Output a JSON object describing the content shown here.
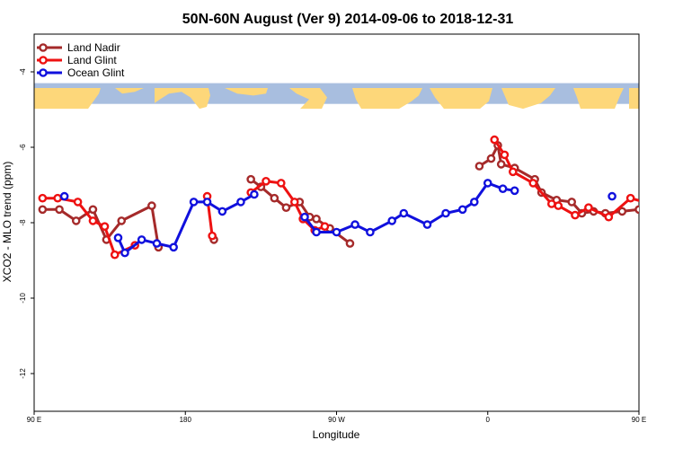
{
  "chart_data": {
    "type": "line",
    "title": "50N-60N August (Ver 9)   2014-09-06 to 2018-12-31",
    "xlabel": "Longitude",
    "ylabel": "XCO2 - MLO trend (ppm)",
    "xlim": [
      90,
      450
    ],
    "ylim": [
      -13,
      -3
    ],
    "x_ticks": [
      {
        "value": 90,
        "label": "90 E"
      },
      {
        "value": 180,
        "label": "180"
      },
      {
        "value": 270,
        "label": "90 W"
      },
      {
        "value": 360,
        "label": "0"
      },
      {
        "value": 450,
        "label": "90 E"
      },
      {
        "value": 540,
        "label": "180"
      }
    ],
    "y_ticks": [
      {
        "value": -4,
        "label": "-4"
      },
      {
        "value": -6,
        "label": "-6"
      },
      {
        "value": -8,
        "label": "-8"
      },
      {
        "value": -10,
        "label": "-10"
      },
      {
        "value": -12,
        "label": "-12"
      }
    ],
    "legend_position": "top-left",
    "map_band": {
      "y_top": -4.3,
      "y_bottom": -4.85,
      "ocean_color": "#a8bedf",
      "land_color": "#fdd77a"
    },
    "series": [
      {
        "name": "Land Nadir",
        "color": "#a52a2a",
        "segments": [
          [
            [
              95,
              -7.65
            ],
            [
              105,
              -7.65
            ],
            [
              115,
              -7.95
            ],
            [
              125,
              -7.65
            ],
            [
              133,
              -8.45
            ],
            [
              142,
              -7.95
            ],
            [
              160,
              -7.55
            ],
            [
              164,
              -8.65
            ]
          ],
          [
            [
              197,
              -8.45
            ]
          ],
          [
            [
              219,
              -6.85
            ],
            [
              225,
              -7.05
            ],
            [
              233,
              -7.35
            ],
            [
              240,
              -7.6
            ],
            [
              248,
              -7.45
            ],
            [
              254,
              -7.85
            ],
            [
              258,
              -7.9
            ],
            [
              266,
              -8.15
            ],
            [
              278,
              -8.55
            ]
          ],
          [
            [
              355,
              -6.5
            ],
            [
              362,
              -6.3
            ],
            [
              366,
              -5.95
            ],
            [
              368,
              -6.45
            ],
            [
              376,
              -6.55
            ],
            [
              388,
              -6.85
            ],
            [
              392,
              -7.2
            ],
            [
              401,
              -7.4
            ],
            [
              410,
              -7.45
            ],
            [
              416,
              -7.75
            ],
            [
              423,
              -7.7
            ],
            [
              430,
              -7.75
            ],
            [
              440,
              -7.7
            ],
            [
              450,
              -7.65
            ],
            [
              460,
              -7.95
            ],
            [
              465,
              -7.65
            ],
            [
              467,
              -8.45
            ],
            [
              472,
              -7.95
            ],
            [
              490,
              -7.55
            ],
            [
              494,
              -8.65
            ]
          ]
        ]
      },
      {
        "name": "Land Glint",
        "color": "#ee1111",
        "segments": [
          [
            [
              95,
              -7.35
            ],
            [
              104,
              -7.35
            ],
            [
              116,
              -7.45
            ],
            [
              125,
              -7.95
            ],
            [
              132,
              -8.1
            ],
            [
              138,
              -8.85
            ],
            [
              150,
              -8.6
            ]
          ],
          [
            [
              193,
              -7.3
            ],
            [
              196,
              -8.35
            ]
          ],
          [
            [
              219,
              -7.2
            ],
            [
              228,
              -6.9
            ],
            [
              237,
              -6.95
            ],
            [
              245,
              -7.45
            ],
            [
              250,
              -7.9
            ],
            [
              257,
              -8.2
            ],
            [
              263,
              -8.1
            ]
          ],
          [
            [
              364,
              -5.8
            ],
            [
              370,
              -6.2
            ],
            [
              375,
              -6.65
            ],
            [
              387,
              -6.95
            ],
            [
              398,
              -7.5
            ],
            [
              402,
              -7.55
            ],
            [
              412,
              -7.8
            ],
            [
              420,
              -7.6
            ],
            [
              432,
              -7.85
            ],
            [
              445,
              -7.35
            ],
            [
              453,
              -7.45
            ],
            [
              460,
              -7.9
            ],
            [
              474,
              -8.85
            ],
            [
              481,
              -8.65
            ]
          ]
        ]
      },
      {
        "name": "Ocean Glint",
        "color": "#1010dd",
        "segments": [
          [
            [
              108,
              -7.3
            ]
          ],
          [
            [
              140,
              -8.4
            ],
            [
              144,
              -8.8
            ],
            [
              154,
              -8.45
            ],
            [
              163,
              -8.55
            ],
            [
              173,
              -8.65
            ],
            [
              185,
              -7.45
            ],
            [
              193,
              -7.45
            ],
            [
              202,
              -7.7
            ],
            [
              213,
              -7.45
            ],
            [
              221,
              -7.25
            ]
          ],
          [
            [
              251,
              -7.85
            ],
            [
              258,
              -8.25
            ],
            [
              270,
              -8.25
            ],
            [
              281,
              -8.05
            ],
            [
              290,
              -8.25
            ],
            [
              303,
              -7.95
            ],
            [
              310,
              -7.75
            ],
            [
              324,
              -8.05
            ],
            [
              335,
              -7.75
            ],
            [
              345,
              -7.65
            ],
            [
              352,
              -7.45
            ],
            [
              360,
              -6.95
            ],
            [
              369,
              -7.1
            ],
            [
              376,
              -7.15
            ]
          ],
          [
            [
              434,
              -7.3
            ]
          ],
          [
            [
              470,
              -8.4
            ],
            [
              474,
              -8.8
            ],
            [
              484,
              -8.45
            ],
            [
              494,
              -8.55
            ],
            [
              505,
              -8.65
            ]
          ]
        ]
      }
    ]
  }
}
